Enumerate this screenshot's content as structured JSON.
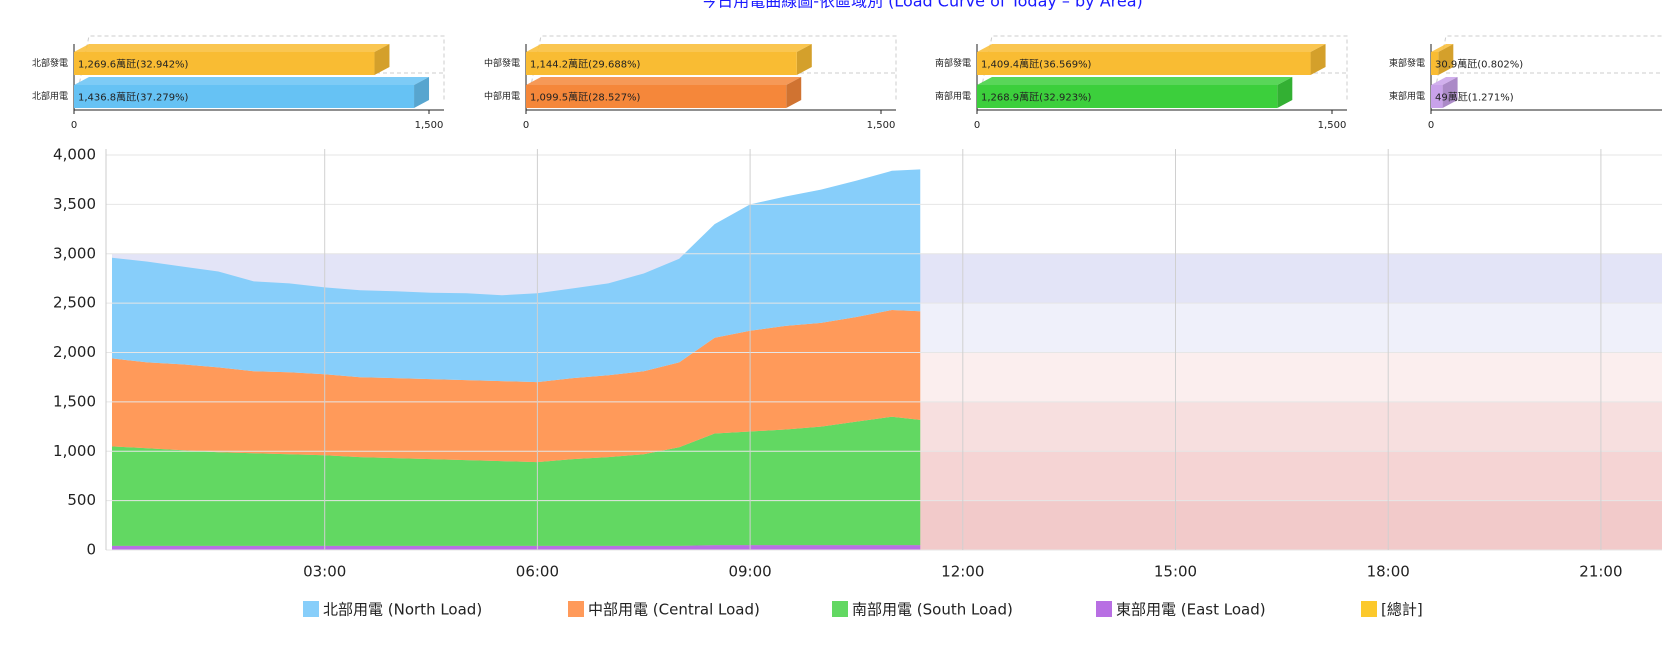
{
  "title": "今日用電曲線圖-依區域別 (Load Curve of Today – by Area)",
  "chart_data": [
    {
      "type": "hbar",
      "categories": [
        "北部發電",
        "北部用電"
      ],
      "values": [
        1269.6,
        1436.8
      ],
      "value_labels": [
        "1,269.6萬瓩(32.942%)",
        "1,436.8萬瓩(37.279%)"
      ],
      "colors": [
        "#f9bc33",
        "#66c2f4"
      ],
      "xlim": [
        0,
        1500
      ],
      "xticks": [
        0,
        {
          "value": 1500,
          "label": "1,500"
        }
      ]
    },
    {
      "type": "hbar",
      "categories": [
        "中部發電",
        "中部用電"
      ],
      "values": [
        1144.2,
        1099.5
      ],
      "value_labels": [
        "1,144.2萬瓩(29.688%)",
        "1,099.5萬瓩(28.527%)"
      ],
      "colors": [
        "#f9bc33",
        "#f5873a"
      ],
      "xlim": [
        0,
        1500
      ],
      "xticks": [
        0,
        {
          "value": 1500,
          "label": "1,500"
        }
      ]
    },
    {
      "type": "hbar",
      "categories": [
        "南部發電",
        "南部用電"
      ],
      "values": [
        1409.4,
        1268.9
      ],
      "value_labels": [
        "1,409.4萬瓩(36.569%)",
        "1,268.9萬瓩(32.923%)"
      ],
      "colors": [
        "#f9bc33",
        "#3ccf3c"
      ],
      "xlim": [
        0,
        1500
      ],
      "xticks": [
        0,
        {
          "value": 1500,
          "label": "1,500"
        }
      ]
    },
    {
      "type": "hbar",
      "categories": [
        "東部發電",
        "東部用電"
      ],
      "values": [
        30.9,
        49
      ],
      "value_labels": [
        "30.9萬瓩(0.802%)",
        "49萬瓩(1.271%)"
      ],
      "colors": [
        "#f9bc33",
        "#c9a2ea"
      ],
      "xlim": [
        0,
        1500
      ],
      "xticks": [
        0
      ]
    },
    {
      "type": "stacked_area",
      "x": [
        0,
        0.5,
        1,
        1.5,
        2,
        2.5,
        3,
        3.5,
        4,
        4.5,
        5,
        5.5,
        6,
        6.5,
        7,
        7.5,
        8,
        8.5,
        9,
        9.5,
        10,
        10.5,
        11,
        11.4
      ],
      "series": [
        {
          "name": "北部用電 (North Load)",
          "color": "#87cefa",
          "values": [
            1020,
            1020,
            990,
            970,
            910,
            900,
            880,
            880,
            880,
            875,
            880,
            870,
            900,
            910,
            930,
            990,
            1050,
            1150,
            1280,
            1310,
            1350,
            1380,
            1410,
            1436.8
          ]
        },
        {
          "name": "中部用電 (Central Load)",
          "color": "#ff9a5a",
          "values": [
            890,
            870,
            870,
            860,
            830,
            830,
            820,
            810,
            810,
            810,
            810,
            810,
            810,
            820,
            830,
            840,
            860,
            970,
            1020,
            1050,
            1050,
            1060,
            1080,
            1099.5
          ]
        },
        {
          "name": "南部用電 (South Load)",
          "color": "#62d862",
          "values": [
            1008,
            988,
            968,
            948,
            938,
            928,
            918,
            898,
            888,
            878,
            868,
            858,
            848,
            878,
            898,
            928,
            998,
            1130,
            1150,
            1170,
            1200,
            1250,
            1300,
            1268.9
          ]
        },
        {
          "name": "東部用電 (East Load)",
          "color": "#b86fe3",
          "values": [
            42,
            42,
            42,
            42,
            42,
            42,
            42,
            42,
            42,
            42,
            42,
            42,
            42,
            42,
            42,
            42,
            42,
            50,
            50,
            50,
            50,
            50,
            50,
            49
          ]
        },
        {
          "name": "[總計]",
          "color": "#fcc92c"
        }
      ],
      "stack_order": [
        "東部用電 (East Load)",
        "南部用電 (South Load)",
        "中部用電 (Central Load)",
        "北部用電 (North Load)"
      ],
      "plot_bands": [
        {
          "from": 0,
          "to": 500,
          "color": "#f2caca"
        },
        {
          "from": 500,
          "to": 1000,
          "color": "#f5d4d4"
        },
        {
          "from": 1000,
          "to": 1500,
          "color": "#f7dfdf"
        },
        {
          "from": 1500,
          "to": 2000,
          "color": "#fbeeee"
        },
        {
          "from": 2000,
          "to": 2500,
          "color": "#eff0fa"
        },
        {
          "from": 2500,
          "to": 3000,
          "color": "#e3e4f7"
        }
      ],
      "xlim": [
        0,
        24
      ],
      "xticks": [
        {
          "value": 3,
          "label": "03:00"
        },
        {
          "value": 6,
          "label": "06:00"
        },
        {
          "value": 9,
          "label": "09:00"
        },
        {
          "value": 12,
          "label": "12:00"
        },
        {
          "value": 15,
          "label": "15:00"
        },
        {
          "value": 18,
          "label": "18:00"
        },
        {
          "value": 21,
          "label": "21:00"
        }
      ],
      "ylim": [
        0,
        4000
      ],
      "yticks": [
        0,
        500,
        {
          "value": 1000,
          "label": "1,000"
        },
        {
          "value": 1500,
          "label": "1,500"
        },
        {
          "value": 2000,
          "label": "2,000"
        },
        {
          "value": 2500,
          "label": "2,500"
        },
        {
          "value": 3000,
          "label": "3,000"
        },
        {
          "value": 3500,
          "label": "3,500"
        },
        {
          "value": 4000,
          "label": "4,000"
        }
      ],
      "grid": true
    }
  ]
}
